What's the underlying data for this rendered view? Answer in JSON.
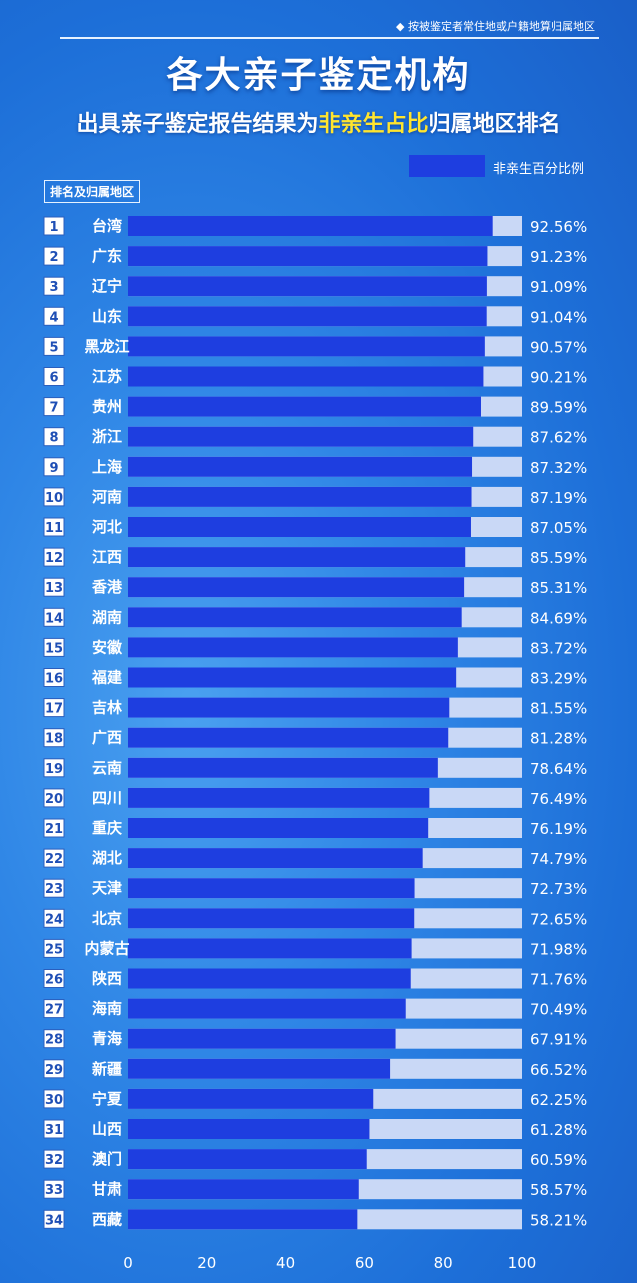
{
  "header": {
    "note": "◆ 按被鉴定者常住地或户籍地算归属地区",
    "title": "各大亲子鉴定机构",
    "subtitle_prefix": "出具亲子鉴定报告结果为",
    "subtitle_highlight": "非亲生占比",
    "subtitle_suffix": "归属地区排名",
    "legend_label": "非亲生百分比例",
    "rank_header": "排名及归属地区"
  },
  "colors": {
    "bar": "#1e3ee0",
    "track": "#c9d8f6",
    "text": "#ffffff"
  },
  "chart_data": {
    "type": "bar",
    "orientation": "horizontal",
    "xlim": [
      0,
      100
    ],
    "xticks": [
      0,
      20,
      40,
      60,
      80,
      100
    ],
    "series": [
      {
        "name": "非亲生百分比例",
        "values": [
          92.56,
          91.23,
          91.09,
          91.04,
          90.57,
          90.21,
          89.59,
          87.62,
          87.32,
          87.19,
          87.05,
          85.59,
          85.31,
          84.69,
          83.72,
          83.29,
          81.55,
          81.28,
          78.64,
          76.49,
          76.19,
          74.79,
          72.73,
          72.65,
          71.98,
          71.76,
          70.49,
          67.91,
          66.52,
          62.25,
          61.28,
          60.59,
          58.57,
          58.21
        ]
      }
    ],
    "ranks": [
      "1",
      "2",
      "3",
      "4",
      "5",
      "6",
      "7",
      "8",
      "9",
      "10",
      "11",
      "12",
      "13",
      "14",
      "15",
      "16",
      "17",
      "18",
      "19",
      "20",
      "21",
      "22",
      "23",
      "24",
      "25",
      "26",
      "27",
      "28",
      "29",
      "30",
      "31",
      "32",
      "33",
      "34"
    ],
    "categories": [
      "台湾",
      "广东",
      "辽宁",
      "山东",
      "黑龙江",
      "江苏",
      "贵州",
      "浙江",
      "上海",
      "河南",
      "河北",
      "江西",
      "香港",
      "湖南",
      "安徽",
      "福建",
      "吉林",
      "广西",
      "云南",
      "四川",
      "重庆",
      "湖北",
      "天津",
      "北京",
      "内蒙古",
      "陕西",
      "海南",
      "青海",
      "新疆",
      "宁夏",
      "山西",
      "澳门",
      "甘肃",
      "西藏"
    ],
    "value_labels": [
      "92.56%",
      "91.23%",
      "91.09%",
      "91.04%",
      "90.57%",
      "90.21%",
      "89.59%",
      "87.62%",
      "87.32%",
      "87.19%",
      "87.05%",
      "85.59%",
      "85.31%",
      "84.69%",
      "83.72%",
      "83.29%",
      "81.55%",
      "81.28%",
      "78.64%",
      "76.49%",
      "76.19%",
      "74.79%",
      "72.73%",
      "72.65%",
      "71.98%",
      "71.76%",
      "70.49%",
      "67.91%",
      "66.52%",
      "62.25%",
      "61.28%",
      "60.59%",
      "58.57%",
      "58.21%"
    ]
  }
}
